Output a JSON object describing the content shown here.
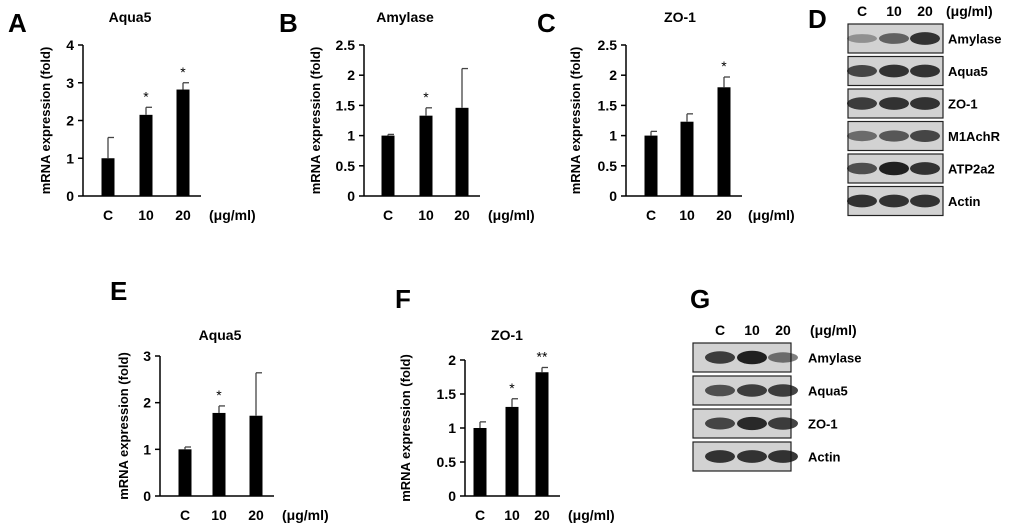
{
  "chart_data": [
    {
      "type": "bar",
      "panel": "A",
      "title": "Aqua5",
      "ylabel": "mRNA expression (fold)",
      "categories": [
        "C",
        "10",
        "20"
      ],
      "unit": "(μg/ml)",
      "values": [
        1.0,
        2.15,
        2.82
      ],
      "errors": [
        0.55,
        0.2,
        0.18
      ],
      "significance": [
        "",
        "*",
        "*"
      ],
      "ylim": [
        0,
        4
      ],
      "yticks": [
        "0",
        "1",
        "2",
        "3",
        "4"
      ]
    },
    {
      "type": "bar",
      "panel": "B",
      "title": "Amylase",
      "ylabel": "mRNA expression (fold)",
      "categories": [
        "C",
        "10",
        "20"
      ],
      "unit": "(μg/ml)",
      "values": [
        1.0,
        1.33,
        1.46
      ],
      "errors": [
        0.02,
        0.13,
        0.65
      ],
      "significance": [
        "",
        "*",
        ""
      ],
      "ylim": [
        0,
        2.5
      ],
      "yticks": [
        "0",
        "0.5",
        "1",
        "1.5",
        "2",
        "2.5"
      ]
    },
    {
      "type": "bar",
      "panel": "C",
      "title": "ZO-1",
      "ylabel": "mRNA expression (fold)",
      "categories": [
        "C",
        "10",
        "20"
      ],
      "unit": "(μg/ml)",
      "values": [
        1.0,
        1.23,
        1.8
      ],
      "errors": [
        0.07,
        0.13,
        0.17
      ],
      "significance": [
        "",
        "",
        "*"
      ],
      "ylim": [
        0,
        2.5
      ],
      "yticks": [
        "0",
        "0.5",
        "1",
        "1.5",
        "2",
        "2.5"
      ]
    },
    {
      "type": "bar",
      "panel": "E",
      "title": "Aqua5",
      "ylabel": "mRNA expression (fold)",
      "categories": [
        "C",
        "10",
        "20"
      ],
      "unit": "(μg/ml)",
      "values": [
        1.0,
        1.78,
        1.72
      ],
      "errors": [
        0.05,
        0.15,
        0.92
      ],
      "significance": [
        "",
        "*",
        ""
      ],
      "ylim": [
        0,
        3
      ],
      "yticks": [
        "0",
        "1",
        "2",
        "3"
      ]
    },
    {
      "type": "bar",
      "panel": "F",
      "title": "ZO-1",
      "ylabel": "mRNA expression (fold)",
      "categories": [
        "C",
        "10",
        "20"
      ],
      "unit": "(μg/ml)",
      "values": [
        1.0,
        1.31,
        1.82
      ],
      "errors": [
        0.09,
        0.12,
        0.07
      ],
      "significance": [
        "",
        "*",
        "**"
      ],
      "ylim": [
        0,
        2
      ],
      "yticks": [
        "0",
        "0.5",
        "1",
        "1.5",
        "2"
      ]
    }
  ],
  "blots": [
    {
      "panel": "D",
      "lanes": [
        "C",
        "10",
        "20"
      ],
      "unit": "(μg/ml)",
      "proteins": [
        "Amylase",
        "Aqua5",
        "ZO-1",
        "M1AchR",
        "ATP2a2",
        "Actin"
      ],
      "intensities": [
        [
          0.35,
          0.6,
          0.85
        ],
        [
          0.75,
          0.85,
          0.85
        ],
        [
          0.8,
          0.85,
          0.85
        ],
        [
          0.55,
          0.65,
          0.75
        ],
        [
          0.7,
          0.95,
          0.85
        ],
        [
          0.85,
          0.85,
          0.85
        ]
      ]
    },
    {
      "panel": "G",
      "lanes": [
        "C",
        "10",
        "20"
      ],
      "unit": "(μg/ml)",
      "proteins": [
        "Amylase",
        "Aqua5",
        "ZO-1",
        "Actin"
      ],
      "intensities": [
        [
          0.8,
          0.95,
          0.55
        ],
        [
          0.7,
          0.8,
          0.8
        ],
        [
          0.75,
          0.9,
          0.8
        ],
        [
          0.85,
          0.85,
          0.85
        ]
      ]
    }
  ],
  "colors": {
    "bar": "#000000",
    "axis": "#000000",
    "text": "#000000",
    "blot_bg": "#d2d2d2",
    "band": "#161616"
  }
}
